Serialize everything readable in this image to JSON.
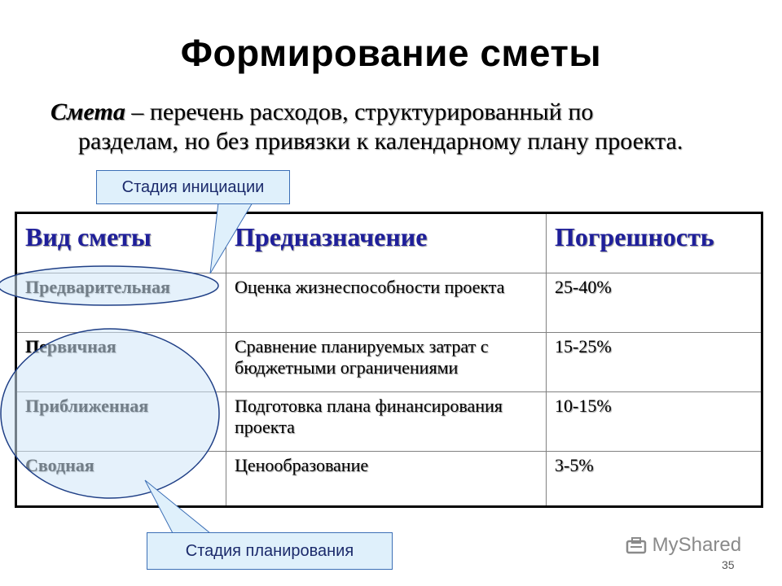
{
  "slide": {
    "title": "Формирование сметы",
    "definition_term": "Смета",
    "definition_line1": " – перечень расходов, структурированный по",
    "definition_line2": "разделам, но без привязки к календарному плану проекта."
  },
  "table": {
    "headers": [
      "Вид сметы",
      "Предназначение",
      "Погрешность"
    ],
    "rows": [
      {
        "kind": "Предварительная",
        "purpose": "Оценка жизнеспособности проекта",
        "error": "25-40%"
      },
      {
        "kind": "Первичная",
        "purpose": "Сравнение планируемых затрат с бюджетными ограничениями",
        "error": "15-25%"
      },
      {
        "kind": "Приближенная",
        "purpose": "Подготовка плана финансирования проекта",
        "error": "10-15%"
      },
      {
        "kind": "Сводная",
        "purpose": "Ценообразование",
        "error": "3-5%"
      }
    ]
  },
  "callouts": {
    "initiation": "Стадия инициации",
    "planning": "Стадия планирования"
  },
  "watermark": {
    "text": "MyShared",
    "icon": "myshared-logo-icon"
  },
  "page_number": "35",
  "colors": {
    "header_text": "#1f1f9a",
    "callout_fill": "#dff0fb",
    "callout_border": "#3c6fb6",
    "ellipse_fill": "#cfe6f7",
    "ellipse_stroke": "#1f3f86"
  }
}
